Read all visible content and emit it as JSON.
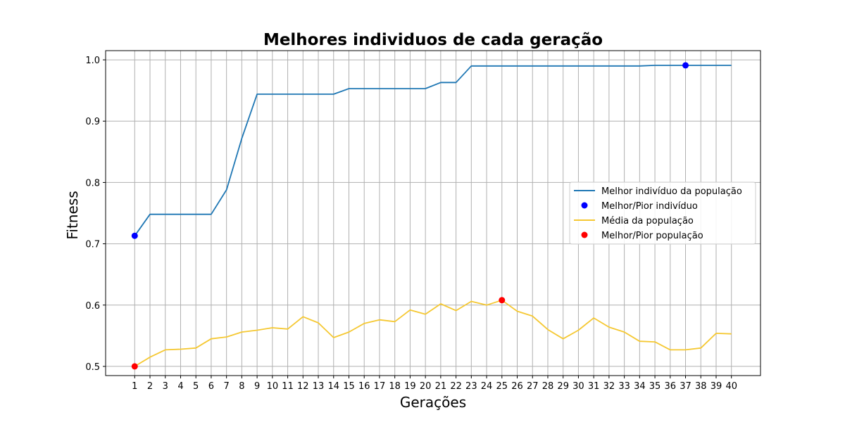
{
  "chart_data": {
    "type": "line",
    "title": "Melhores individuos de cada geração",
    "xlabel": "Gerações",
    "ylabel": "Fitness",
    "x": [
      1,
      2,
      3,
      4,
      5,
      6,
      7,
      8,
      9,
      10,
      11,
      12,
      13,
      14,
      15,
      16,
      17,
      18,
      19,
      20,
      21,
      22,
      23,
      24,
      25,
      26,
      27,
      28,
      29,
      30,
      31,
      32,
      33,
      34,
      35,
      36,
      37,
      38,
      39,
      40
    ],
    "xlim": [
      -0.9,
      41.9
    ],
    "ylim": [
      0.485,
      1.015
    ],
    "yticks": [
      0.5,
      0.6,
      0.7,
      0.8,
      0.9,
      1.0
    ],
    "ytick_labels": [
      "0.5",
      "0.6",
      "0.7",
      "0.8",
      "0.9",
      "1.0"
    ],
    "grid": true,
    "legend_position": "center-right",
    "series": [
      {
        "name": "Melhor indivíduo da população",
        "kind": "line",
        "color": "#1f77b4",
        "values": [
          0.713,
          0.748,
          0.748,
          0.748,
          0.748,
          0.748,
          0.788,
          0.872,
          0.944,
          0.944,
          0.944,
          0.944,
          0.944,
          0.944,
          0.953,
          0.953,
          0.953,
          0.953,
          0.953,
          0.953,
          0.963,
          0.963,
          0.99,
          0.99,
          0.99,
          0.99,
          0.99,
          0.99,
          0.99,
          0.99,
          0.99,
          0.99,
          0.99,
          0.99,
          0.991,
          0.991,
          0.991,
          0.991,
          0.991,
          0.991
        ]
      },
      {
        "name": "Melhor/Pior indivíduo",
        "kind": "markers",
        "color": "#0000ff",
        "points": [
          {
            "x": 1,
            "y": 0.713
          },
          {
            "x": 37,
            "y": 0.991
          }
        ]
      },
      {
        "name": "Média da população",
        "kind": "line",
        "color": "#f5c832",
        "values": [
          0.5,
          0.515,
          0.527,
          0.528,
          0.53,
          0.545,
          0.548,
          0.556,
          0.559,
          0.563,
          0.561,
          0.581,
          0.571,
          0.547,
          0.556,
          0.57,
          0.576,
          0.573,
          0.592,
          0.585,
          0.602,
          0.591,
          0.606,
          0.6,
          0.608,
          0.59,
          0.582,
          0.56,
          0.545,
          0.559,
          0.579,
          0.564,
          0.556,
          0.541,
          0.54,
          0.527,
          0.527,
          0.53,
          0.554,
          0.553
        ]
      },
      {
        "name": "Melhor/Pior população",
        "kind": "markers",
        "color": "#ff0000",
        "points": [
          {
            "x": 1,
            "y": 0.5
          },
          {
            "x": 25,
            "y": 0.608
          }
        ]
      }
    ]
  }
}
